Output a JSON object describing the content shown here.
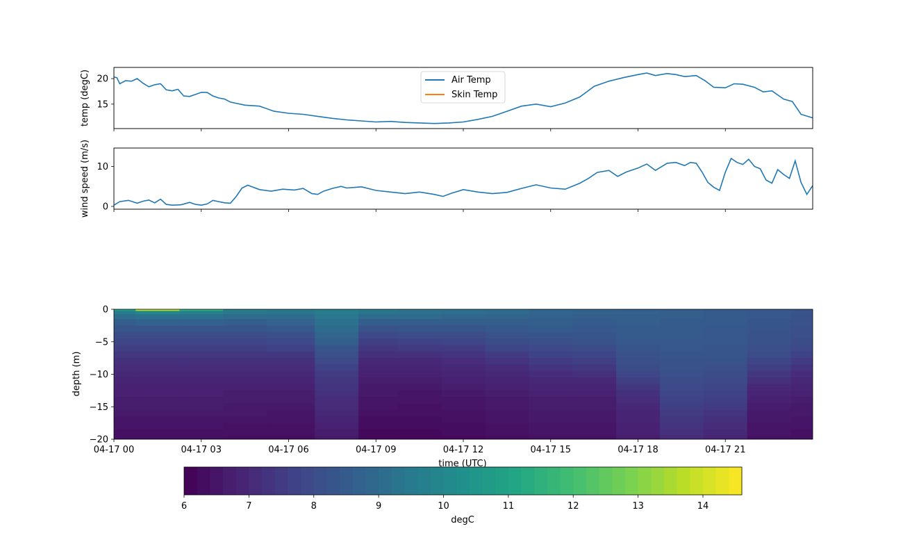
{
  "chart_data": [
    {
      "type": "line",
      "title": "",
      "xlabel": "",
      "ylabel": "temp (degC)",
      "xlim": [
        0,
        24
      ],
      "ylim": [
        10.2,
        22.2
      ],
      "yticks": [
        15,
        20
      ],
      "xticks": [
        0,
        3,
        6,
        9,
        12,
        15,
        18,
        21
      ],
      "legend_position": "upper-center",
      "series": [
        {
          "name": "Air Temp",
          "color": "#1f77b4",
          "x": [
            0,
            0.1,
            0.2,
            0.4,
            0.6,
            0.8,
            1.0,
            1.2,
            1.4,
            1.6,
            1.8,
            2.0,
            2.2,
            2.4,
            2.6,
            2.8,
            3.0,
            3.2,
            3.4,
            3.6,
            3.8,
            4.0,
            4.5,
            5.0,
            5.5,
            6.0,
            6.5,
            7.0,
            7.5,
            8.0,
            8.5,
            9.0,
            9.5,
            10.0,
            10.5,
            11.0,
            11.5,
            12.0,
            12.5,
            13.0,
            13.5,
            14.0,
            14.5,
            15.0,
            15.5,
            16.0,
            16.5,
            17.0,
            17.5,
            18.0,
            18.3,
            18.6,
            19.0,
            19.3,
            19.6,
            20.0,
            20.3,
            20.6,
            21.0,
            21.3,
            21.6,
            22.0,
            22.3,
            22.6,
            23.0,
            23.3,
            23.6,
            24.0
          ],
          "values": [
            20.3,
            20.2,
            19.0,
            19.6,
            19.5,
            20.0,
            19.1,
            18.4,
            18.8,
            19.0,
            17.8,
            17.6,
            17.9,
            16.6,
            16.5,
            16.9,
            17.3,
            17.3,
            16.6,
            16.2,
            16.0,
            15.4,
            14.8,
            14.6,
            13.6,
            13.2,
            13.0,
            12.6,
            12.2,
            11.9,
            11.7,
            11.5,
            11.6,
            11.4,
            11.3,
            11.2,
            11.3,
            11.5,
            12.0,
            12.6,
            13.6,
            14.6,
            15.0,
            14.5,
            15.2,
            16.4,
            18.5,
            19.5,
            20.2,
            20.8,
            21.1,
            20.6,
            21.0,
            20.8,
            20.4,
            20.6,
            19.6,
            18.3,
            18.2,
            19.0,
            18.9,
            18.3,
            17.4,
            17.6,
            16.0,
            15.5,
            13.0,
            12.3
          ]
        },
        {
          "name": "Skin Temp",
          "color": "#ff7f0e",
          "x": [],
          "values": []
        }
      ]
    },
    {
      "type": "line",
      "title": "",
      "xlabel": "",
      "ylabel": "wind speed (m/s)",
      "xlim": [
        0,
        24
      ],
      "ylim": [
        -0.7,
        14.6
      ],
      "yticks": [
        0,
        10
      ],
      "xticks": [
        0,
        3,
        6,
        9,
        12,
        15,
        18,
        21
      ],
      "series": [
        {
          "name": "",
          "color": "#1f77b4",
          "x": [
            0,
            0.2,
            0.5,
            0.8,
            1.0,
            1.2,
            1.4,
            1.6,
            1.8,
            2.0,
            2.3,
            2.6,
            2.8,
            3.0,
            3.2,
            3.4,
            3.6,
            3.8,
            4.0,
            4.2,
            4.4,
            4.6,
            5.0,
            5.4,
            5.8,
            6.2,
            6.5,
            6.8,
            7.0,
            7.2,
            7.5,
            7.8,
            8.0,
            8.5,
            9.0,
            9.5,
            10.0,
            10.5,
            11.0,
            11.3,
            11.6,
            12.0,
            12.5,
            13.0,
            13.5,
            14.0,
            14.5,
            15.0,
            15.5,
            16.0,
            16.3,
            16.6,
            17.0,
            17.3,
            17.6,
            18.0,
            18.3,
            18.6,
            19.0,
            19.3,
            19.6,
            19.8,
            20.0,
            20.2,
            20.4,
            20.6,
            20.8,
            21.0,
            21.2,
            21.4,
            21.6,
            21.8,
            22.0,
            22.2,
            22.4,
            22.6,
            22.8,
            23.0,
            23.2,
            23.4,
            23.6,
            23.8,
            24.0
          ],
          "values": [
            0.3,
            1.2,
            1.5,
            0.8,
            1.3,
            1.6,
            0.9,
            1.8,
            0.5,
            0.3,
            0.4,
            1.0,
            0.5,
            0.3,
            0.6,
            1.5,
            1.2,
            0.9,
            0.8,
            2.5,
            4.6,
            5.3,
            4.2,
            3.8,
            4.3,
            4.1,
            4.5,
            3.2,
            3.0,
            3.8,
            4.5,
            5.0,
            4.6,
            4.9,
            4.0,
            3.6,
            3.2,
            3.6,
            3.0,
            2.5,
            3.3,
            4.2,
            3.6,
            3.2,
            3.5,
            4.5,
            5.4,
            4.6,
            4.3,
            5.8,
            7.0,
            8.5,
            9.0,
            7.5,
            8.6,
            9.6,
            10.6,
            9.0,
            10.8,
            11.0,
            10.2,
            11.0,
            10.8,
            8.6,
            6.0,
            4.8,
            4.0,
            8.6,
            12.0,
            11.0,
            10.5,
            11.8,
            10.0,
            9.4,
            6.6,
            5.8,
            9.2,
            8.0,
            7.0,
            11.4,
            6.0,
            3.0,
            5.2
          ]
        }
      ]
    },
    {
      "type": "heatmap",
      "title": "",
      "xlabel": "time (UTC)",
      "ylabel": "depth (m)",
      "xlim": [
        0,
        24
      ],
      "ylim": [
        -20,
        0
      ],
      "yticks": [
        0,
        -5,
        -10,
        -15,
        -20
      ],
      "xticks": [
        0,
        3,
        6,
        9,
        12,
        15,
        18,
        21
      ],
      "xtick_labels": [
        "04-17 00",
        "04-17 03",
        "04-17 06",
        "04-17 09",
        "04-17 12",
        "04-17 15",
        "04-17 18",
        "04-17 21"
      ],
      "colorbar": {
        "label": "degC",
        "range": [
          6.0,
          14.6
        ],
        "ticks": [
          6,
          7,
          8,
          9,
          10,
          11,
          12,
          13,
          14
        ],
        "colormap": "viridis",
        "orientation": "horizontal"
      },
      "profile_depths": [
        0,
        -0.5,
        -1,
        -2,
        -3,
        -4,
        -5,
        -6,
        -7,
        -8,
        -9,
        -10,
        -11,
        -12,
        -13,
        -14,
        -15,
        -16,
        -17,
        -18,
        -19,
        -20
      ],
      "profile_times": [
        0,
        1.5,
        3,
        4.5,
        6,
        7.8,
        9,
        10.5,
        12,
        13.5,
        15,
        16.5,
        18,
        19.5,
        21,
        22.5,
        24
      ],
      "values": [
        [
          11.0,
          9.6,
          9.1,
          8.6,
          8.3,
          8.0,
          7.8,
          7.6,
          7.4,
          7.2,
          7.1,
          7.0,
          6.9,
          6.8,
          6.8,
          6.7,
          6.7,
          6.6,
          6.5,
          6.5,
          6.4,
          6.4
        ],
        [
          13.8,
          10.0,
          9.2,
          8.7,
          8.3,
          8.0,
          7.8,
          7.6,
          7.4,
          7.2,
          7.1,
          7.0,
          6.9,
          6.8,
          6.8,
          6.7,
          6.7,
          6.6,
          6.5,
          6.5,
          6.4,
          6.4
        ],
        [
          11.6,
          9.8,
          9.2,
          8.7,
          8.3,
          8.0,
          7.8,
          7.6,
          7.4,
          7.2,
          7.1,
          7.0,
          6.9,
          6.8,
          6.8,
          6.7,
          6.7,
          6.6,
          6.5,
          6.5,
          6.4,
          6.4
        ],
        [
          9.8,
          9.4,
          9.0,
          8.6,
          8.3,
          8.0,
          7.8,
          7.6,
          7.4,
          7.2,
          7.1,
          7.0,
          6.9,
          6.8,
          6.7,
          6.7,
          6.6,
          6.6,
          6.5,
          6.4,
          6.4,
          6.3
        ],
        [
          9.6,
          9.3,
          9.0,
          8.7,
          8.4,
          8.1,
          7.9,
          7.7,
          7.4,
          7.2,
          7.1,
          7.0,
          6.9,
          6.8,
          6.7,
          6.7,
          6.6,
          6.5,
          6.5,
          6.4,
          6.4,
          6.3
        ],
        [
          9.8,
          9.6,
          9.4,
          9.2,
          9.0,
          8.8,
          8.6,
          8.3,
          8.1,
          7.9,
          7.7,
          7.5,
          7.4,
          7.3,
          7.2,
          7.1,
          7.1,
          7.0,
          6.9,
          6.8,
          6.7,
          6.6
        ],
        [
          9.6,
          9.3,
          9.0,
          8.6,
          8.2,
          7.9,
          7.6,
          7.4,
          7.2,
          7.0,
          6.9,
          6.8,
          6.7,
          6.6,
          6.6,
          6.5,
          6.5,
          6.4,
          6.3,
          6.3,
          6.2,
          6.2
        ],
        [
          9.4,
          9.2,
          9.0,
          8.6,
          8.3,
          8.0,
          7.7,
          7.5,
          7.2,
          7.0,
          6.9,
          6.8,
          6.7,
          6.6,
          6.5,
          6.5,
          6.4,
          6.4,
          6.3,
          6.3,
          6.2,
          6.2
        ],
        [
          9.3,
          9.1,
          8.9,
          8.6,
          8.3,
          8.0,
          7.8,
          7.5,
          7.3,
          7.1,
          7.0,
          6.9,
          6.8,
          6.7,
          6.6,
          6.5,
          6.5,
          6.4,
          6.4,
          6.3,
          6.3,
          6.2
        ],
        [
          9.2,
          9.0,
          8.8,
          8.6,
          8.4,
          8.2,
          8.0,
          7.8,
          7.5,
          7.3,
          7.1,
          7.0,
          6.9,
          6.8,
          6.7,
          6.6,
          6.6,
          6.5,
          6.5,
          6.4,
          6.4,
          6.3
        ],
        [
          8.9,
          8.8,
          8.7,
          8.6,
          8.5,
          8.3,
          8.1,
          7.9,
          7.7,
          7.5,
          7.3,
          7.1,
          7.0,
          6.9,
          6.8,
          6.7,
          6.7,
          6.6,
          6.6,
          6.5,
          6.5,
          6.4
        ],
        [
          8.8,
          8.7,
          8.6,
          8.5,
          8.4,
          8.3,
          8.2,
          8.0,
          7.8,
          7.6,
          7.4,
          7.2,
          7.0,
          6.9,
          6.8,
          6.7,
          6.7,
          6.6,
          6.6,
          6.5,
          6.5,
          6.4
        ],
        [
          8.7,
          8.7,
          8.6,
          8.6,
          8.5,
          8.5,
          8.4,
          8.3,
          8.2,
          8.1,
          8.0,
          7.8,
          7.6,
          7.4,
          7.2,
          7.1,
          7.0,
          6.9,
          6.9,
          6.8,
          6.8,
          6.7
        ],
        [
          8.6,
          8.6,
          8.6,
          8.5,
          8.5,
          8.5,
          8.4,
          8.4,
          8.3,
          8.2,
          8.2,
          8.1,
          8.0,
          7.9,
          7.8,
          7.7,
          7.6,
          7.5,
          7.4,
          7.3,
          7.2,
          7.1
        ],
        [
          8.5,
          8.5,
          8.5,
          8.5,
          8.4,
          8.4,
          8.4,
          8.3,
          8.3,
          8.2,
          8.1,
          8.0,
          7.9,
          7.8,
          7.7,
          7.6,
          7.5,
          7.3,
          7.2,
          7.1,
          7.0,
          6.9
        ],
        [
          8.4,
          8.4,
          8.4,
          8.3,
          8.3,
          8.2,
          8.2,
          8.1,
          8.0,
          7.8,
          7.6,
          7.4,
          7.2,
          7.0,
          6.9,
          6.8,
          6.7,
          6.6,
          6.6,
          6.5,
          6.5,
          6.4
        ],
        [
          8.3,
          8.3,
          8.2,
          8.2,
          8.1,
          8.1,
          8.0,
          7.9,
          7.7,
          7.5,
          7.3,
          7.1,
          7.0,
          6.9,
          6.8,
          6.7,
          6.6,
          6.6,
          6.5,
          6.5,
          6.4,
          6.4
        ]
      ]
    }
  ]
}
